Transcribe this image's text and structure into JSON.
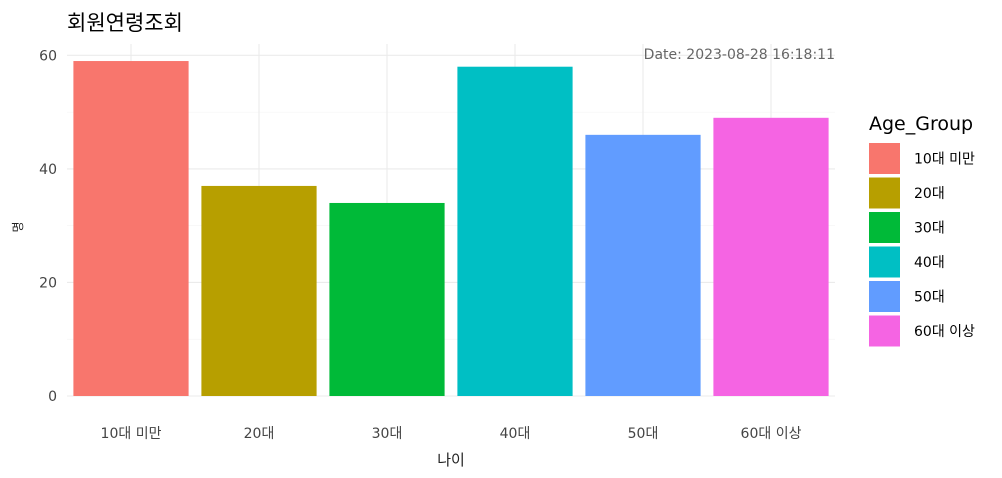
{
  "chart_data": {
    "type": "bar",
    "title": "회원연령조회",
    "xlabel": "나이",
    "ylabel": "명",
    "categories": [
      "10대 미만",
      "20대",
      "30대",
      "40대",
      "50대",
      "60대 이상"
    ],
    "values": [
      59,
      37,
      34,
      58,
      46,
      49
    ],
    "colors": [
      "#F8766D",
      "#B79F00",
      "#00BA38",
      "#00BFC4",
      "#619CFF",
      "#F564E3"
    ],
    "ylim": [
      0,
      62
    ],
    "yticks": [
      0,
      20,
      40,
      60
    ],
    "grid": true,
    "annotation": "Date: 2023-08-28 16:18:11",
    "legend": {
      "title": "Age_Group",
      "position": "right",
      "items": [
        "10대 미만",
        "20대",
        "30대",
        "40대",
        "50대",
        "60대 이상"
      ]
    }
  }
}
